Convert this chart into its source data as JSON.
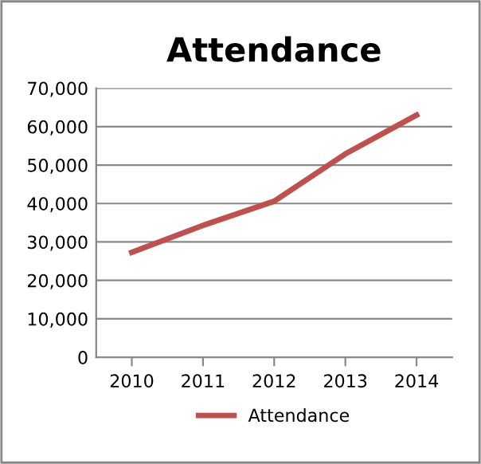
{
  "chart_data": {
    "type": "line",
    "title": "Attendance",
    "categories": [
      "2010",
      "2011",
      "2012",
      "2013",
      "2014"
    ],
    "series": [
      {
        "name": "Attendance",
        "color": "#c0504d",
        "values": [
          27300,
          34300,
          40600,
          52900,
          63000
        ]
      }
    ],
    "ylim": [
      0,
      70000
    ],
    "yticks": [
      {
        "value": 0,
        "label": "0"
      },
      {
        "value": 10000,
        "label": "10,000"
      },
      {
        "value": 20000,
        "label": "20,000"
      },
      {
        "value": 30000,
        "label": "30,000"
      },
      {
        "value": 40000,
        "label": "40,000"
      },
      {
        "value": 50000,
        "label": "50,000"
      },
      {
        "value": 60000,
        "label": "60,000"
      },
      {
        "value": 70000,
        "label": "70,000"
      }
    ],
    "grid": "y",
    "legend": "bottom",
    "marker": "none",
    "line_style": "solid"
  }
}
